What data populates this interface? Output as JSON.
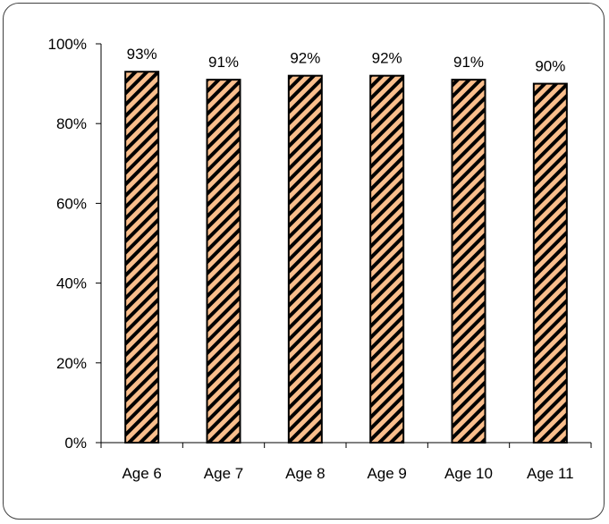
{
  "chart_data": {
    "type": "bar",
    "title": "",
    "xlabel": "",
    "ylabel": "",
    "categories": [
      "Age 6",
      "Age 7",
      "Age 8",
      "Age 9",
      "Age 10",
      "Age 11"
    ],
    "values": [
      93,
      91,
      92,
      92,
      91,
      90
    ],
    "data_labels": [
      "93%",
      "91%",
      "92%",
      "92%",
      "91%",
      "90%"
    ],
    "y_ticks": [
      0,
      20,
      40,
      60,
      80,
      100
    ],
    "y_tick_labels": [
      "0%",
      "20%",
      "40%",
      "60%",
      "80%",
      "100%"
    ],
    "ylim": [
      0,
      100
    ],
    "grid": false,
    "legend": "none",
    "bar_fill_color": "#F9BE8C",
    "bar_hatch_color": "#000000",
    "bar_pattern": "diagonal-hatch",
    "axis_color": "#000000"
  }
}
